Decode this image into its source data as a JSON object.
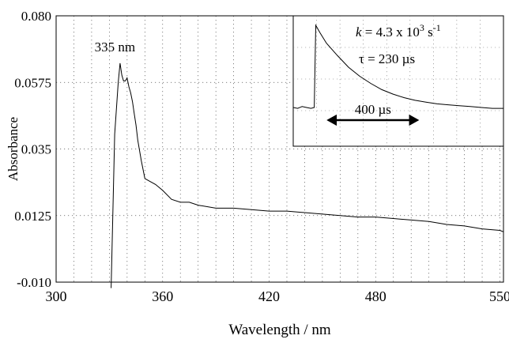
{
  "chart_data": {
    "type": "line",
    "title": "",
    "xlabel": "Wavelength / nm",
    "ylabel": "Absorbance",
    "xlim": [
      300,
      552
    ],
    "ylim": [
      -0.01,
      0.08
    ],
    "x_ticks": [
      300,
      360,
      420,
      480,
      550
    ],
    "x_tick_labels": [
      "300",
      "360",
      "420",
      "480",
      "550"
    ],
    "y_ticks": [
      -0.01,
      0.0125,
      0.035,
      0.0575,
      0.08
    ],
    "y_tick_labels": [
      "-0.010",
      "0.0125",
      "0.035",
      "0.0575",
      "0.080"
    ],
    "grid": true,
    "legend": "none",
    "series": [
      {
        "x": [
          331,
          333,
          335,
          336,
          337,
          338,
          339,
          340,
          341,
          342,
          343,
          344,
          345,
          346,
          348,
          350,
          353,
          356,
          360,
          365,
          370,
          375,
          380,
          390,
          400,
          410,
          420,
          430,
          440,
          450,
          460,
          470,
          480,
          490,
          500,
          510,
          520,
          530,
          540,
          550,
          552
        ],
        "y": [
          -0.012,
          0.04,
          0.0575,
          0.064,
          0.06,
          0.058,
          0.058,
          0.059,
          0.056,
          0.054,
          0.051,
          0.047,
          0.043,
          0.038,
          0.031,
          0.025,
          0.024,
          0.023,
          0.021,
          0.018,
          0.017,
          0.017,
          0.016,
          0.015,
          0.015,
          0.0145,
          0.014,
          0.014,
          0.0135,
          0.013,
          0.0125,
          0.012,
          0.012,
          0.0115,
          0.011,
          0.0105,
          0.0095,
          0.009,
          0.008,
          0.0075,
          0.007
        ]
      }
    ],
    "annotations": [
      {
        "text": "335 nm",
        "x": 335,
        "y": 0.0575
      }
    ],
    "inset": {
      "type": "line",
      "k_symbol": "k",
      "k_text": " = 4.3 x 10",
      "k_exp": "3",
      "k_unit": " s",
      "k_unit_exp": "-1",
      "tau_text": "τ = 230 µs",
      "scale_label": "400 µs",
      "scale_us": 400,
      "x_us": [
        -100,
        -80,
        -60,
        -40,
        -20,
        -5,
        0,
        20,
        50,
        100,
        150,
        200,
        250,
        300,
        350,
        400,
        450,
        500,
        550,
        600,
        650,
        700,
        750,
        800,
        850
      ],
      "y_rel": [
        0.08,
        0.07,
        0.09,
        0.08,
        0.07,
        0.08,
        1.0,
        0.92,
        0.8,
        0.66,
        0.53,
        0.43,
        0.35,
        0.28,
        0.23,
        0.19,
        0.16,
        0.14,
        0.12,
        0.11,
        0.1,
        0.09,
        0.08,
        0.07,
        0.07
      ]
    }
  }
}
